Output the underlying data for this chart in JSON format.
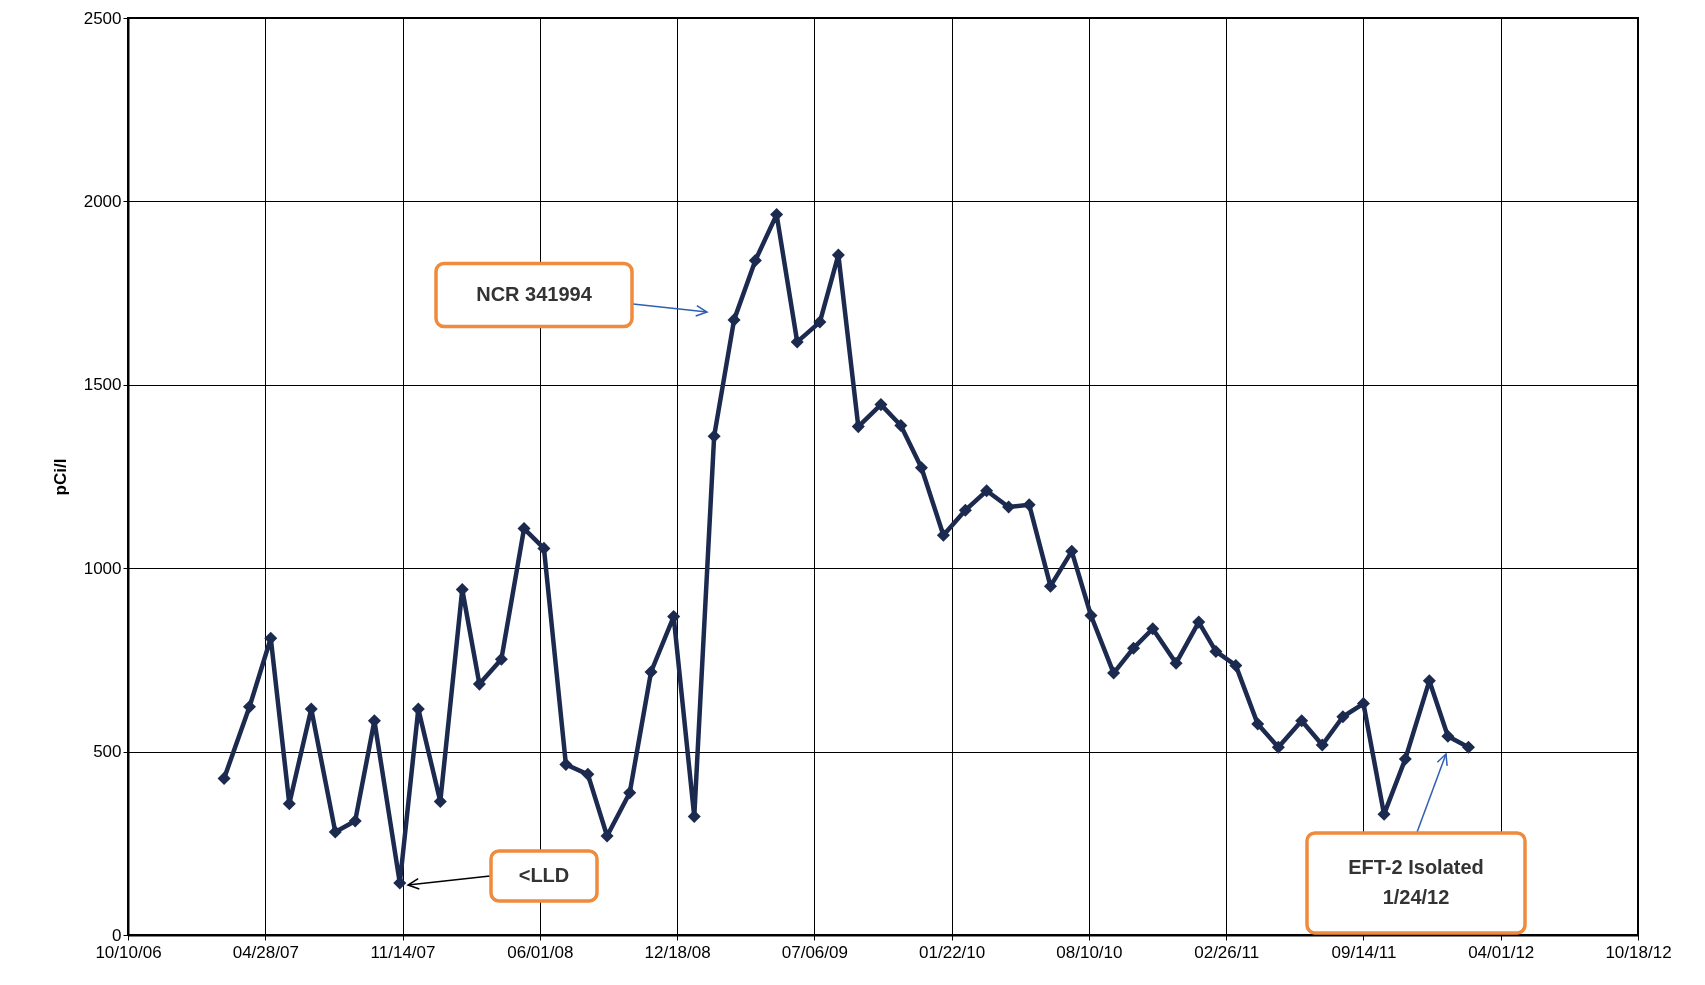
{
  "chart_data": {
    "type": "line",
    "ylabel": "pCi/l",
    "marker": "diamond",
    "grid": true,
    "xlim": [
      "2006-10-10",
      "2012-10-18"
    ],
    "xticks": [
      {
        "value": "2006-10-10",
        "label": "10/10/06"
      },
      {
        "value": "2007-04-28",
        "label": "04/28/07"
      },
      {
        "value": "2007-11-14",
        "label": "11/14/07"
      },
      {
        "value": "2008-06-01",
        "label": "06/01/08"
      },
      {
        "value": "2008-12-18",
        "label": "12/18/08"
      },
      {
        "value": "2009-07-06",
        "label": "07/06/09"
      },
      {
        "value": "2010-01-22",
        "label": "01/22/10"
      },
      {
        "value": "2010-08-10",
        "label": "08/10/10"
      },
      {
        "value": "2011-02-26",
        "label": "02/26/11"
      },
      {
        "value": "2011-09-14",
        "label": "09/14/11"
      },
      {
        "value": "2012-04-01",
        "label": "04/01/12"
      },
      {
        "value": "2012-10-18",
        "label": "10/18/12"
      }
    ],
    "ylim": [
      0,
      2500
    ],
    "yticks": [
      0,
      500,
      1000,
      1500,
      2000,
      2500
    ],
    "x": [
      "2007-02-27",
      "2007-04-05",
      "2007-05-06",
      "2007-06-02",
      "2007-07-04",
      "2007-08-08",
      "2007-09-06",
      "2007-10-04",
      "2007-11-10",
      "2007-12-07",
      "2008-01-08",
      "2008-02-09",
      "2008-03-05",
      "2008-04-06",
      "2008-05-09",
      "2008-06-07",
      "2008-07-09",
      "2008-08-10",
      "2008-09-07",
      "2008-10-10",
      "2008-11-10",
      "2008-12-13",
      "2009-01-12",
      "2009-02-10",
      "2009-03-11",
      "2009-04-11",
      "2009-05-12",
      "2009-06-11",
      "2009-07-14",
      "2009-08-10",
      "2009-09-08",
      "2009-10-11",
      "2009-11-09",
      "2009-12-09",
      "2010-01-10",
      "2010-02-11",
      "2010-03-14",
      "2010-04-15",
      "2010-05-15",
      "2010-06-15",
      "2010-07-16",
      "2010-08-13",
      "2010-09-15",
      "2010-10-14",
      "2010-11-11",
      "2010-12-15",
      "2011-01-17",
      "2011-02-11",
      "2011-03-12",
      "2011-04-13",
      "2011-05-13",
      "2011-06-16",
      "2011-07-16",
      "2011-08-15",
      "2011-09-14",
      "2011-10-14",
      "2011-11-14",
      "2011-12-19",
      "2012-01-15",
      "2012-02-14"
    ],
    "series": [
      {
        "color": "#1b2a4e",
        "values": [
          427,
          622,
          809,
          358,
          616,
          281,
          311,
          584,
          142,
          616,
          364,
          942,
          684,
          752,
          1108,
          1054,
          465,
          438,
          270,
          388,
          717,
          868,
          323,
          1360,
          1677,
          1839,
          1964,
          1617,
          1671,
          1854,
          1386,
          1446,
          1389,
          1274,
          1090,
          1158,
          1211,
          1167,
          1173,
          951,
          1046,
          871,
          714,
          782,
          835,
          741,
          853,
          773,
          735,
          575,
          512,
          584,
          518,
          595,
          631,
          329,
          480,
          693,
          542,
          512
        ]
      }
    ],
    "annotations": [
      "NCR 341994",
      "<LLD",
      "EFT-2 Isolated\n1/24/12"
    ]
  }
}
